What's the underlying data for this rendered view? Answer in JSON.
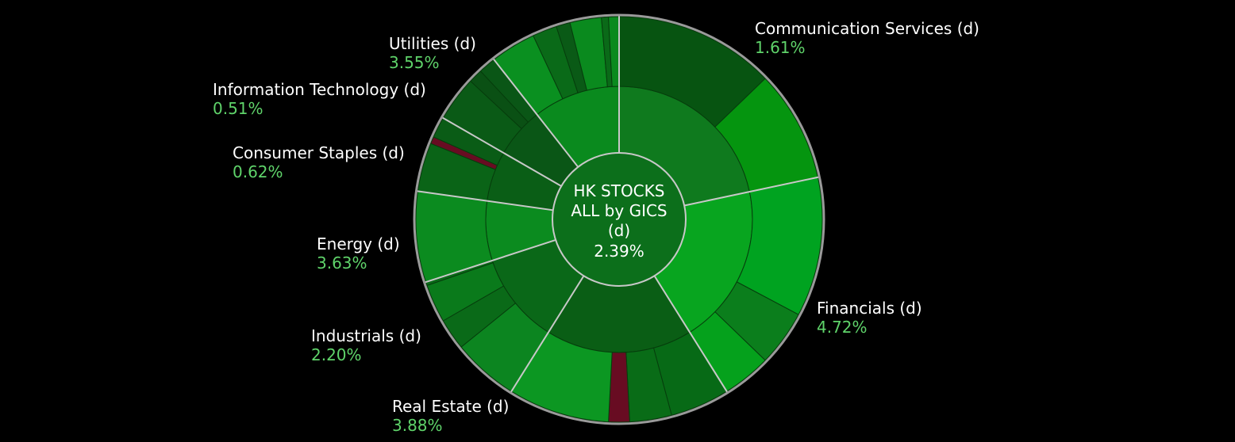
{
  "chart_data": {
    "type": "sunburst",
    "center": {
      "line1": "HK STOCKS",
      "line2": "ALL by GICS",
      "line3": "(d)",
      "value": "2.39%"
    },
    "sectors": [
      {
        "name": "Communication Services (d)",
        "value": "1.61%",
        "start": 0,
        "end": 78,
        "fill": "#0f7a1e",
        "children": [
          {
            "start": 0,
            "end": 46,
            "fill": "#075411"
          },
          {
            "start": 46,
            "end": 78,
            "fill": "#05950f"
          }
        ]
      },
      {
        "name": "Financials (d)",
        "value": "4.72%",
        "start": 78,
        "end": 148,
        "fill": "#08a51f",
        "children": [
          {
            "start": 78,
            "end": 118,
            "fill": "#00a320"
          },
          {
            "start": 118,
            "end": 134,
            "fill": "#0b7e1c"
          },
          {
            "start": 134,
            "end": 148,
            "fill": "#05a11c"
          }
        ]
      },
      {
        "name": "Real Estate (d)",
        "value": "3.88%",
        "start": 148,
        "end": 212,
        "fill": "#0a5e15",
        "children": [
          {
            "start": 148,
            "end": 165,
            "fill": "#076a16"
          },
          {
            "start": 165,
            "end": 177,
            "fill": "#096c17"
          },
          {
            "start": 177,
            "end": 183,
            "fill": "#680c22"
          },
          {
            "start": 183,
            "end": 212,
            "fill": "#0c9722"
          }
        ]
      },
      {
        "name": "Industrials (d)",
        "value": "2.20%",
        "start": 212,
        "end": 252,
        "fill": "#0a6818",
        "children": [
          {
            "start": 212,
            "end": 231,
            "fill": "#0c8520"
          },
          {
            "start": 231,
            "end": 240,
            "fill": "#0a6a18"
          },
          {
            "start": 240,
            "end": 251,
            "fill": "#0a7a1b"
          },
          {
            "start": 251,
            "end": 252,
            "fill": "#0a6a18"
          }
        ]
      },
      {
        "name": "Energy (d)",
        "value": "3.63%",
        "start": 252,
        "end": 278,
        "fill": "#0b8b1f",
        "children": [
          {
            "start": 252,
            "end": 278,
            "fill": "#0b8b1f"
          }
        ]
      },
      {
        "name": "Consumer Staples (d)",
        "value": "0.62%",
        "start": 278,
        "end": 300,
        "fill": "#0a5e16",
        "children": [
          {
            "start": 278,
            "end": 292,
            "fill": "#0a6417"
          },
          {
            "start": 292,
            "end": 294,
            "fill": "#680c22"
          },
          {
            "start": 294,
            "end": 300,
            "fill": "#0a5c16"
          }
        ]
      },
      {
        "name": "Information Technology (d)",
        "value": "0.51%",
        "start": 300,
        "end": 322,
        "fill": "#0a5616",
        "children": [
          {
            "start": 300,
            "end": 313,
            "fill": "#0a5a16"
          },
          {
            "start": 313,
            "end": 317,
            "fill": "#0a5014"
          },
          {
            "start": 317,
            "end": 322,
            "fill": "#0a5616"
          }
        ]
      },
      {
        "name": "Utilities (d)",
        "value": "3.55%",
        "start": 322,
        "end": 360,
        "fill": "#0a8a1e",
        "children": [
          {
            "start": 322,
            "end": 335,
            "fill": "#0a9020"
          },
          {
            "start": 335,
            "end": 342,
            "fill": "#0a6a18"
          },
          {
            "start": 342,
            "end": 346,
            "fill": "#0a5a16"
          },
          {
            "start": 346,
            "end": 355,
            "fill": "#0a8a1e"
          },
          {
            "start": 355,
            "end": 357,
            "fill": "#0a6a18"
          },
          {
            "start": 357,
            "end": 360,
            "fill": "#0a8a1e"
          }
        ]
      }
    ],
    "colors": {
      "background": "#000000",
      "center": "#0c6f1b",
      "label_name": "#ffffff",
      "label_value": "#5fd36a",
      "separator": "#c8c8c8",
      "outer_ring": "#9a9a9a"
    }
  }
}
